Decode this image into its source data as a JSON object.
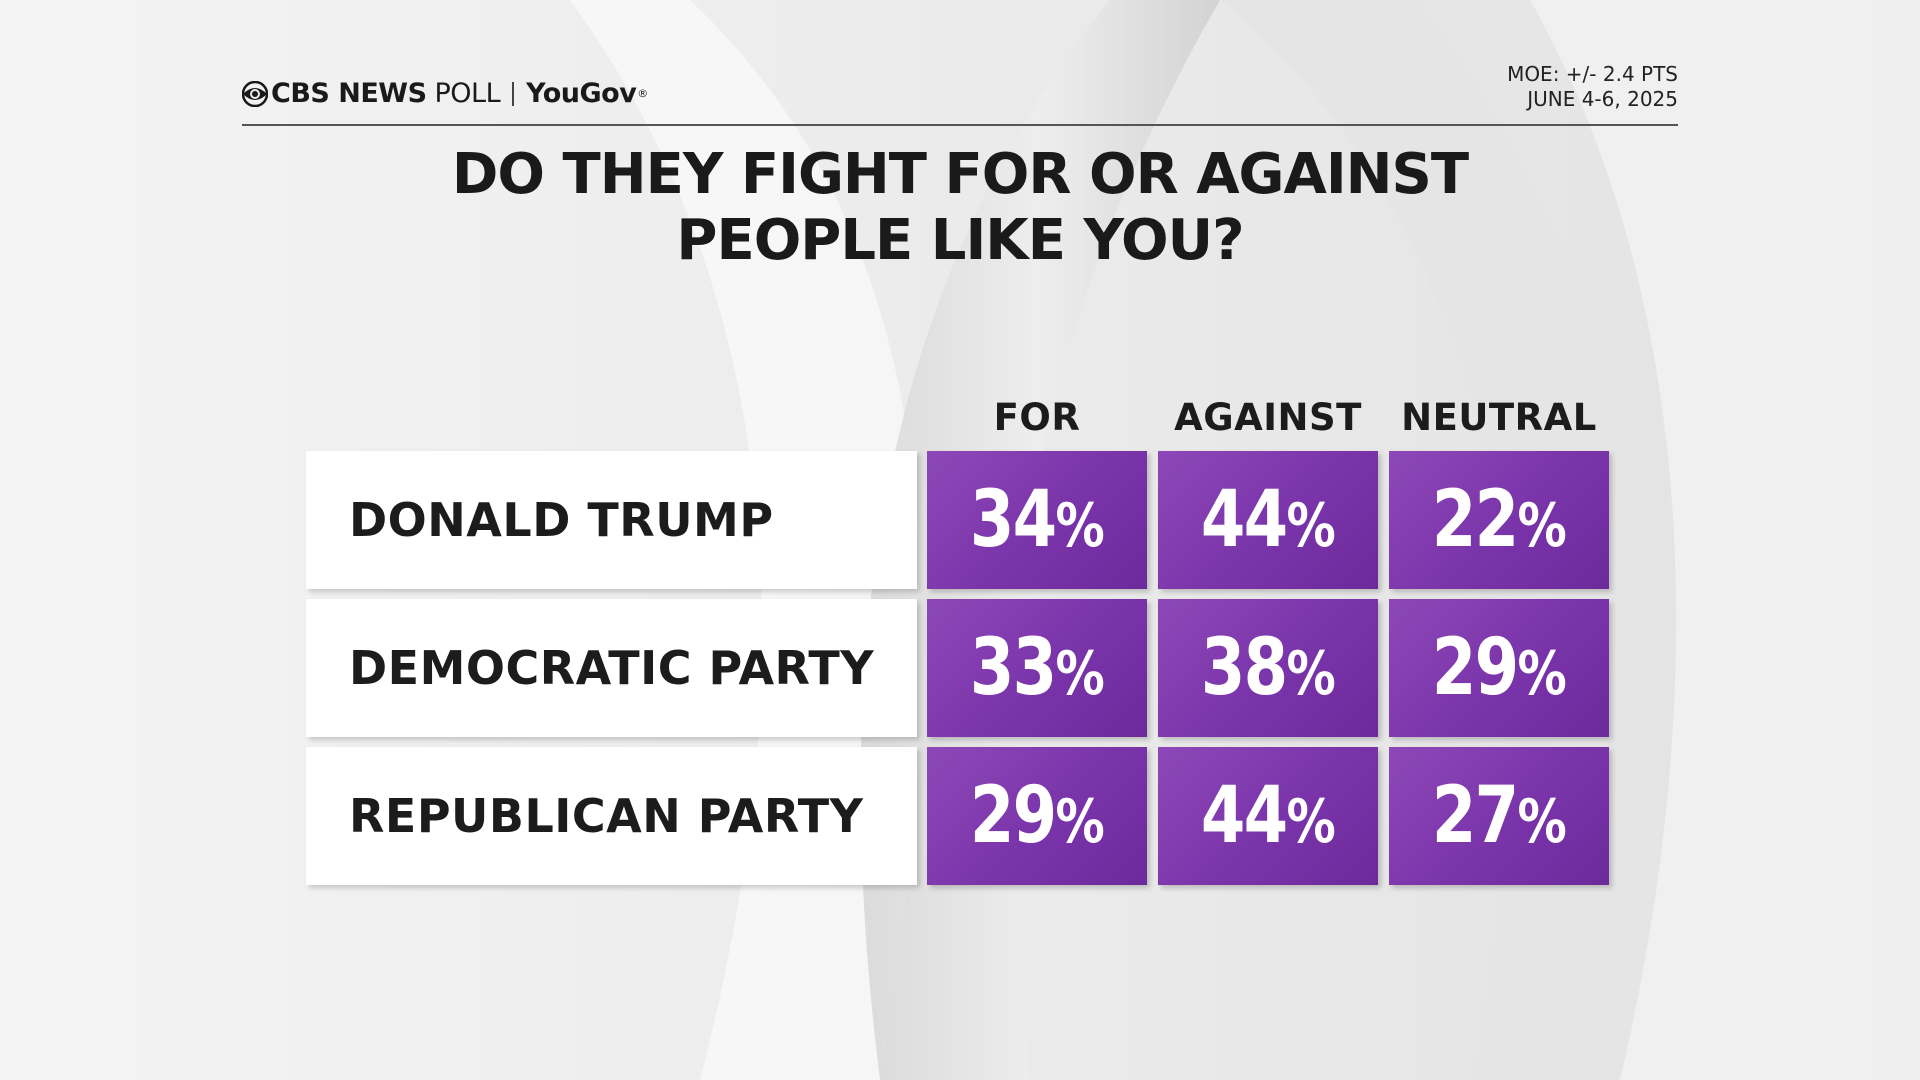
{
  "header": {
    "brand_cbs": "CBS NEWS",
    "brand_poll": "POLL",
    "brand_yougov": "YouGov",
    "moe": "MOE: +/- 2.4 PTS",
    "dates": "JUNE 4-6, 2025"
  },
  "chart_data": {
    "type": "table",
    "title_lines": [
      "DO THEY FIGHT FOR OR AGAINST",
      "PEOPLE LIKE YOU?"
    ],
    "columns": [
      "FOR",
      "AGAINST",
      "NEUTRAL"
    ],
    "rows": [
      {
        "label": "DONALD TRUMP",
        "values": [
          34,
          44,
          22
        ]
      },
      {
        "label": "DEMOCRATIC PARTY",
        "values": [
          33,
          38,
          29
        ]
      },
      {
        "label": "REPUBLICAN PARTY",
        "values": [
          29,
          44,
          27
        ]
      }
    ],
    "unit": "%"
  },
  "colors": {
    "cell_purple": "#7a34aa",
    "background": "#ececec"
  }
}
